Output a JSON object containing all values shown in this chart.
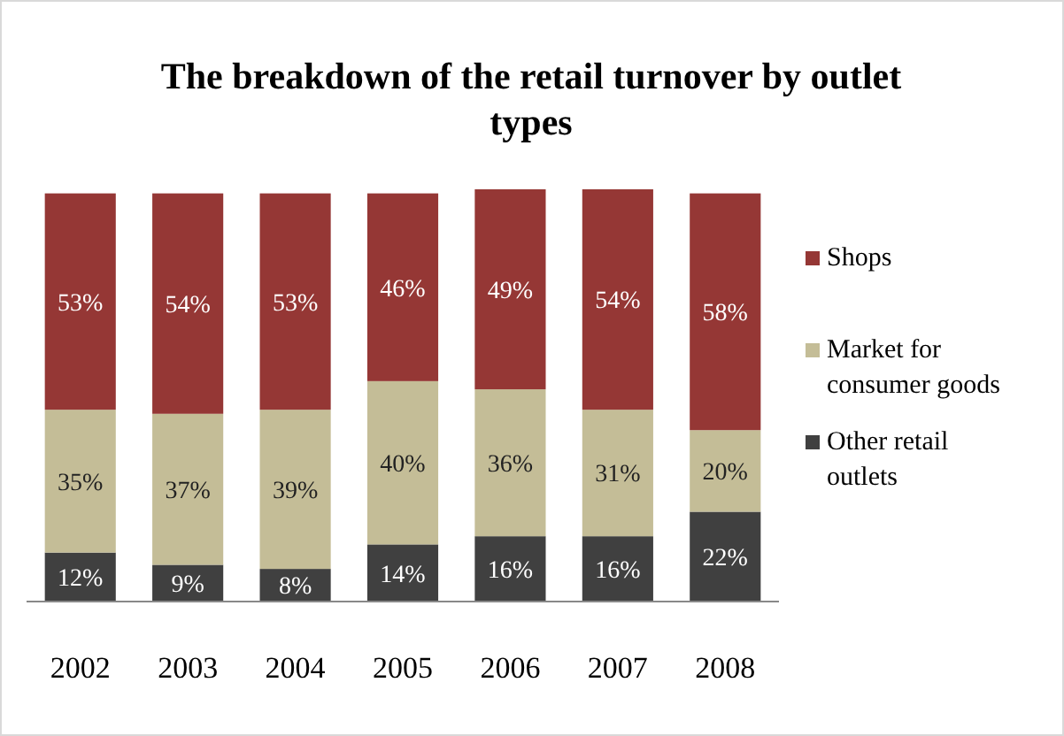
{
  "chart_data": {
    "type": "bar",
    "stacked": true,
    "title": "The breakdown of the retail turnover by outlet types",
    "categories": [
      "2002",
      "2003",
      "2004",
      "2005",
      "2006",
      "2007",
      "2008"
    ],
    "series": [
      {
        "name": "Other retail outlets",
        "color": "#404040",
        "values": [
          12,
          9,
          8,
          14,
          16,
          16,
          22
        ],
        "value_labels": [
          "12%",
          "9%",
          "8%",
          "14%",
          "16%",
          "16%",
          "22%"
        ]
      },
      {
        "name": "Market for consumer goods",
        "color": "#c4bd97",
        "values": [
          35,
          37,
          39,
          40,
          36,
          31,
          20
        ],
        "value_labels": [
          "35%",
          "37%",
          "39%",
          "40%",
          "36%",
          "31%",
          "20%"
        ]
      },
      {
        "name": "Shops",
        "color": "#953735",
        "values": [
          53,
          54,
          53,
          46,
          49,
          54,
          58
        ],
        "value_labels": [
          "53%",
          "54%",
          "53%",
          "46%",
          "49%",
          "54%",
          "58%"
        ]
      }
    ],
    "legend": "right"
  }
}
